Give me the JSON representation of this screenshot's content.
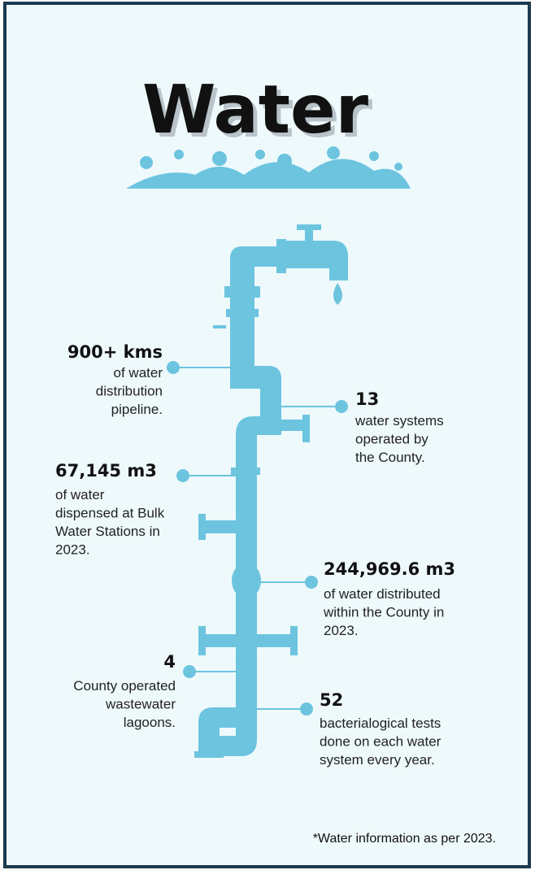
{
  "header": {
    "title": "Water"
  },
  "stats": [
    {
      "value": "900+ kms",
      "description": [
        "of water",
        "distribution",
        "pipeline."
      ]
    },
    {
      "value": "13",
      "description": [
        "water systems",
        "operated by",
        "the County."
      ]
    },
    {
      "value": "67,145 m3",
      "description": [
        "of water",
        "dispensed at Bulk",
        "Water Stations in",
        "2023."
      ]
    },
    {
      "value": "244,969.6 m3",
      "description": [
        "of water distributed",
        "within the County in",
        "2023."
      ]
    },
    {
      "value": "4",
      "description": [
        "County operated",
        "wastewater",
        "lagoons."
      ]
    },
    {
      "value": "52",
      "description": [
        "bacterialogical tests",
        "done on each water",
        "system every year."
      ]
    }
  ],
  "footnote": "*Water information as per 2023."
}
